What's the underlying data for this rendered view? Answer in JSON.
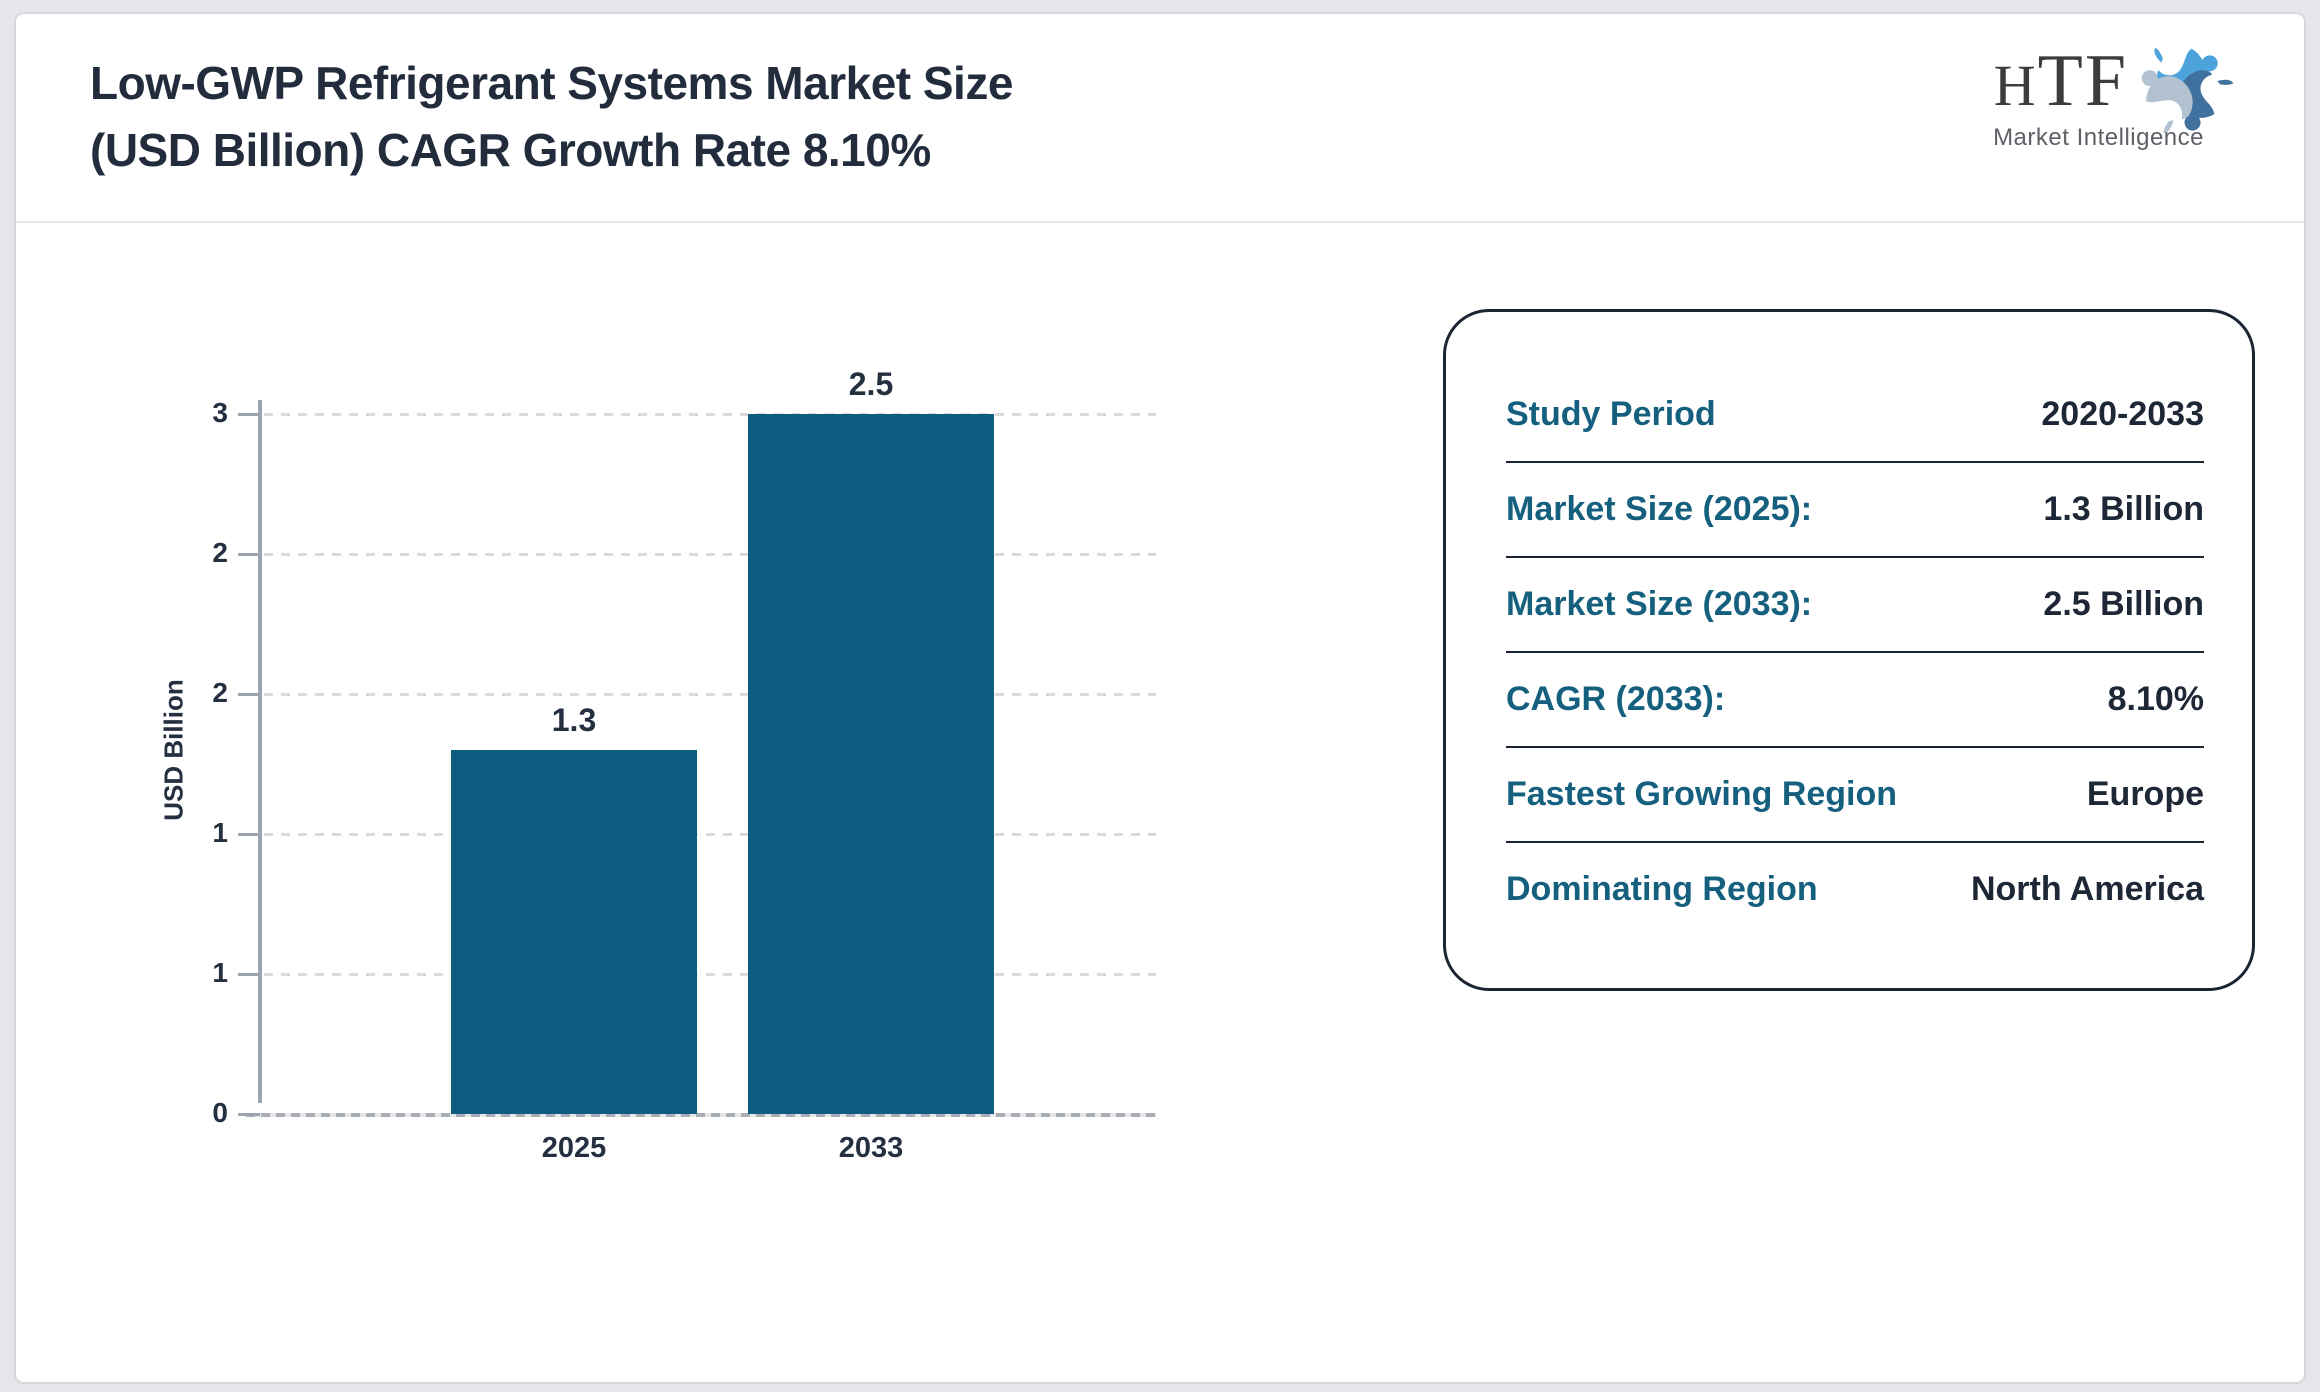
{
  "header": {
    "title_line1": "Low-GWP Refrigerant Systems Market Size",
    "title_line2": "(USD Billion) CAGR Growth Rate 8.10%"
  },
  "logo": {
    "name_h": "H",
    "name_tf": "TF",
    "subtitle": "Market Intelligence"
  },
  "chart_data": {
    "type": "bar",
    "title": "Low-GWP Refrigerant Systems Market Size (USD Billion) CAGR Growth Rate 8.10%",
    "categories": [
      "2025",
      "2033"
    ],
    "values": [
      1.3,
      2.5
    ],
    "bar_labels": [
      "1.3",
      "2.5"
    ],
    "xlabel": "",
    "ylabel": "USD Billion",
    "ylim": [
      0,
      2.5
    ],
    "ytick_values": [
      0,
      0.5,
      1.0,
      1.5,
      2.0,
      2.5
    ],
    "ytick_labels": [
      "0",
      "1",
      "1",
      "2",
      "2",
      "3"
    ],
    "grid": true,
    "legend": "none",
    "bar_color": "#0e5c80"
  },
  "info_card": {
    "rows": [
      {
        "label": "Study Period",
        "value": "2020-2033"
      },
      {
        "label": "Market Size (2025):",
        "value": "1.3 Billion"
      },
      {
        "label": "Market Size (2033):",
        "value": "2.5 Billion"
      },
      {
        "label": "CAGR (2033):",
        "value": "8.10%"
      },
      {
        "label": "Fastest Growing Region",
        "value": "Europe"
      },
      {
        "label": "Dominating Region",
        "value": "North America"
      }
    ]
  },
  "colors": {
    "bar": "#0e5c80",
    "label_teal": "#16607f",
    "value_navy": "#1d2736",
    "title_navy": "#222c3c",
    "axis_gray": "#9aa3ae",
    "page_background": "#e4e6ea",
    "logo_blue_light": "#4da3dc",
    "logo_blue_steel": "#41719f",
    "logo_gray_blue": "#b3c2d1"
  }
}
